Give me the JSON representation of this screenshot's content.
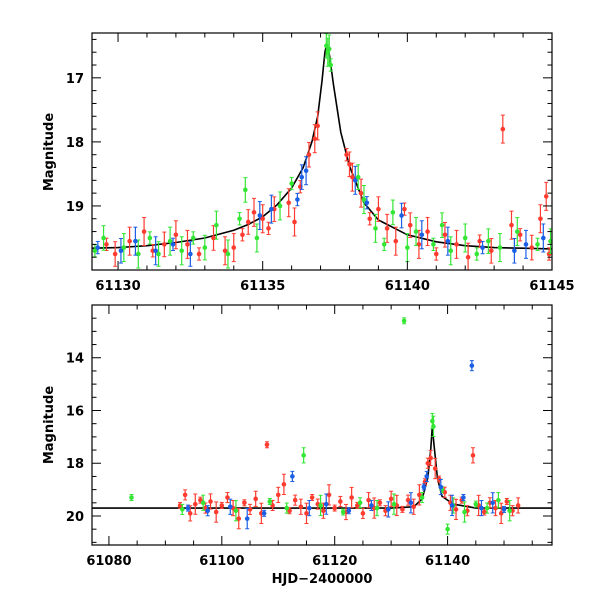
{
  "colors": {
    "red": "#ff3b2f",
    "green": "#33e633",
    "blue": "#1a5fe6",
    "model": "#000000"
  },
  "chart_data": [
    {
      "id": "top",
      "type": "scatter",
      "title": "",
      "xlabel": "",
      "ylabel": "Magnitude",
      "xlim": [
        61129.1,
        61145.0
      ],
      "ylim": [
        20.0,
        16.3
      ],
      "yinverted": true,
      "xticks": [
        61130,
        61135,
        61140,
        61145
      ],
      "xtick_labels": [
        "61130",
        "61135",
        "61140",
        "61145"
      ],
      "yticks": [
        17,
        18,
        19
      ],
      "ytick_labels": [
        "17",
        "18",
        "19"
      ],
      "minor_x_step": 1,
      "minor_y_step": 0.2,
      "model": {
        "type": "line",
        "x": [
          61129.1,
          61130,
          61131,
          61132,
          61133,
          61134,
          61134.5,
          61135,
          61135.5,
          61136,
          61136.4,
          61136.7,
          61136.9,
          61137.05,
          61137.15,
          61137.2,
          61137.3,
          61137.45,
          61137.7,
          61138,
          61138.5,
          61139,
          61140,
          61141,
          61142,
          61143,
          61144,
          61145
        ],
        "y": [
          19.66,
          19.65,
          19.62,
          19.57,
          19.5,
          19.38,
          19.29,
          19.17,
          18.98,
          18.72,
          18.4,
          18.0,
          17.6,
          17.05,
          16.6,
          16.5,
          16.62,
          17.12,
          17.85,
          18.38,
          18.95,
          19.22,
          19.45,
          19.56,
          19.62,
          19.65,
          19.66,
          19.67
        ]
      },
      "series": [
        {
          "name": "red",
          "color": "#ff3b2f",
          "points": [
            [
              61129.6,
              19.6
            ],
            [
              61129.9,
              19.75
            ],
            [
              61130.4,
              19.55
            ],
            [
              61130.9,
              19.4
            ],
            [
              61131.2,
              19.7
            ],
            [
              61131.6,
              19.6
            ],
            [
              61132.0,
              19.45
            ],
            [
              61132.4,
              19.6
            ],
            [
              61132.8,
              19.75
            ],
            [
              61133.3,
              19.5
            ],
            [
              61133.7,
              19.7
            ],
            [
              61134.0,
              19.65
            ],
            [
              61134.3,
              19.45
            ],
            [
              61134.5,
              19.25
            ],
            [
              61134.7,
              19.1
            ],
            [
              61135.0,
              19.2
            ],
            [
              61135.2,
              19.35
            ],
            [
              61135.4,
              19.05
            ],
            [
              61135.9,
              18.95
            ],
            [
              61136.1,
              19.25
            ],
            [
              61136.3,
              18.7
            ],
            [
              61136.6,
              18.2
            ],
            [
              61136.8,
              17.95
            ],
            [
              61136.9,
              17.75
            ],
            [
              61137.9,
              18.2
            ],
            [
              61138.0,
              18.35
            ],
            [
              61138.1,
              18.55
            ],
            [
              61138.4,
              18.8
            ],
            [
              61138.7,
              19.2
            ],
            [
              61139.0,
              19.05
            ],
            [
              61139.3,
              19.35
            ],
            [
              61139.6,
              19.55
            ],
            [
              61139.9,
              19.05
            ],
            [
              61140.1,
              19.3
            ],
            [
              61140.4,
              19.6
            ],
            [
              61140.7,
              19.4
            ],
            [
              61141.0,
              19.75
            ],
            [
              61141.3,
              19.45
            ],
            [
              61141.7,
              19.6
            ],
            [
              61142.1,
              19.8
            ],
            [
              61142.5,
              19.55
            ],
            [
              61142.9,
              19.7
            ],
            [
              61143.3,
              17.8
            ],
            [
              61143.6,
              19.3
            ],
            [
              61143.9,
              19.45
            ],
            [
              61144.3,
              19.65
            ],
            [
              61144.6,
              19.2
            ],
            [
              61144.8,
              18.85
            ],
            [
              61144.9,
              19.75
            ]
          ]
        },
        {
          "name": "green",
          "color": "#33e633",
          "points": [
            [
              61129.2,
              19.7
            ],
            [
              61129.5,
              19.5
            ],
            [
              61130.2,
              19.65
            ],
            [
              61130.7,
              19.75
            ],
            [
              61131.1,
              19.5
            ],
            [
              61131.4,
              19.75
            ],
            [
              61131.8,
              19.55
            ],
            [
              61132.2,
              19.7
            ],
            [
              61132.6,
              19.5
            ],
            [
              61133.0,
              19.65
            ],
            [
              61133.4,
              19.3
            ],
            [
              61133.8,
              19.75
            ],
            [
              61134.2,
              19.2
            ],
            [
              61134.4,
              18.75
            ],
            [
              61134.8,
              19.5
            ],
            [
              61135.6,
              19.0
            ],
            [
              61136.0,
              18.65
            ],
            [
              61137.2,
              16.5
            ],
            [
              61137.25,
              16.6
            ],
            [
              61137.3,
              16.55
            ],
            [
              61137.35,
              16.8
            ],
            [
              61138.3,
              18.55
            ],
            [
              61138.5,
              18.9
            ],
            [
              61138.9,
              19.35
            ],
            [
              61139.2,
              19.6
            ],
            [
              61139.5,
              19.1
            ],
            [
              61140.0,
              19.65
            ],
            [
              61140.3,
              19.4
            ],
            [
              61140.9,
              19.6
            ],
            [
              61141.2,
              19.3
            ],
            [
              61141.5,
              19.7
            ],
            [
              61142.0,
              19.5
            ],
            [
              61142.4,
              19.75
            ],
            [
              61142.8,
              19.55
            ],
            [
              61143.2,
              19.65
            ],
            [
              61143.8,
              19.4
            ],
            [
              61144.5,
              19.6
            ],
            [
              61144.95,
              19.55
            ]
          ]
        },
        {
          "name": "blue",
          "color": "#1a5fe6",
          "points": [
            [
              61129.3,
              19.65
            ],
            [
              61130.1,
              19.7
            ],
            [
              61130.6,
              19.55
            ],
            [
              61131.3,
              19.7
            ],
            [
              61131.9,
              19.6
            ],
            [
              61132.5,
              19.75
            ],
            [
              61134.9,
              19.15
            ],
            [
              61135.3,
              19.05
            ],
            [
              61136.2,
              18.9
            ],
            [
              61136.35,
              18.55
            ],
            [
              61136.5,
              18.45
            ],
            [
              61138.2,
              18.6
            ],
            [
              61138.6,
              18.95
            ],
            [
              61139.8,
              19.15
            ],
            [
              61140.5,
              19.45
            ],
            [
              61141.4,
              19.55
            ],
            [
              61142.6,
              19.65
            ],
            [
              61143.7,
              19.7
            ],
            [
              61144.1,
              19.6
            ],
            [
              61144.7,
              19.5
            ]
          ]
        }
      ]
    },
    {
      "id": "bottom",
      "type": "scatter",
      "title": "",
      "xlabel": "HJD−2400000",
      "ylabel": "Magnitude",
      "xlim": [
        61077.0,
        61158.5
      ],
      "ylim": [
        21.1,
        12.0
      ],
      "yinverted": true,
      "xticks": [
        61080,
        61100,
        61120,
        61140
      ],
      "xtick_labels": [
        "61080",
        "61100",
        "61120",
        "61140"
      ],
      "yticks": [
        14,
        16,
        18,
        20
      ],
      "ytick_labels": [
        "14",
        "16",
        "18",
        "20"
      ],
      "minor_x_step": 5,
      "minor_y_step": 0.5,
      "model": {
        "type": "line",
        "x": [
          61077.0,
          61130.0,
          61134.0,
          61135.5,
          61136.5,
          61137.0,
          61137.3,
          61137.6,
          61138.2,
          61139.0,
          61141.0,
          61145.0,
          61158.5
        ],
        "y": [
          19.7,
          19.7,
          19.65,
          19.35,
          18.55,
          17.5,
          16.6,
          17.3,
          18.55,
          19.25,
          19.55,
          19.7,
          19.7
        ]
      },
      "series": [
        {
          "name": "red",
          "color": "#ff3b2f",
          "points": [
            [
              61092.6,
              19.6
            ],
            [
              61093.5,
              19.2
            ],
            [
              61094.4,
              19.9
            ],
            [
              61095.3,
              19.55
            ],
            [
              61096.2,
              19.4
            ],
            [
              61097.1,
              19.7
            ],
            [
              61098.0,
              19.45
            ],
            [
              61099.0,
              19.85
            ],
            [
              61100.0,
              19.6
            ],
            [
              61101.0,
              19.3
            ],
            [
              61102.0,
              19.7
            ],
            [
              61103.0,
              20.1
            ],
            [
              61104.0,
              19.5
            ],
            [
              61105.0,
              19.75
            ],
            [
              61106.0,
              19.35
            ],
            [
              61107.0,
              19.9
            ],
            [
              61108.0,
              17.3
            ],
            [
              61109.0,
              19.6
            ],
            [
              61110.0,
              19.2
            ],
            [
              61111.0,
              18.8
            ],
            [
              61112.0,
              19.8
            ],
            [
              61113.0,
              19.4
            ],
            [
              61114.0,
              19.65
            ],
            [
              61115.0,
              19.9
            ],
            [
              61116.0,
              19.3
            ],
            [
              61117.0,
              19.55
            ],
            [
              61118.0,
              19.8
            ],
            [
              61119.0,
              19.2
            ],
            [
              61120.0,
              19.7
            ],
            [
              61121.0,
              19.45
            ],
            [
              61122.0,
              19.85
            ],
            [
              61123.0,
              19.3
            ],
            [
              61124.0,
              19.6
            ],
            [
              61125.0,
              19.9
            ],
            [
              61126.0,
              19.4
            ],
            [
              61127.0,
              19.7
            ],
            [
              61128.0,
              19.5
            ],
            [
              61129.0,
              19.8
            ],
            [
              61130.0,
              19.35
            ],
            [
              61131.0,
              19.6
            ],
            [
              61132.0,
              19.75
            ],
            [
              61133.0,
              19.4
            ],
            [
              61134.0,
              19.65
            ],
            [
              61135.0,
              19.2
            ],
            [
              61136.0,
              18.7
            ],
            [
              61136.5,
              18.0
            ],
            [
              61137.0,
              17.8
            ],
            [
              61137.8,
              18.2
            ],
            [
              61138.5,
              18.6
            ],
            [
              61139.5,
              19.1
            ],
            [
              61140.5,
              19.5
            ],
            [
              61141.5,
              19.75
            ],
            [
              61142.5,
              19.4
            ],
            [
              61143.5,
              19.8
            ],
            [
              61144.5,
              17.7
            ],
            [
              61145.5,
              19.6
            ],
            [
              61146.5,
              19.85
            ],
            [
              61147.5,
              19.5
            ],
            [
              61148.5,
              19.7
            ],
            [
              61149.5,
              19.9
            ],
            [
              61150.5,
              19.45
            ],
            [
              61151.5,
              19.8
            ],
            [
              61152.5,
              19.6
            ]
          ]
        },
        {
          "name": "green",
          "color": "#33e633",
          "points": [
            [
              61084.0,
              19.3
            ],
            [
              61093.0,
              19.75
            ],
            [
              61096.7,
              19.5
            ],
            [
              61102.5,
              19.8
            ],
            [
              61108.5,
              19.45
            ],
            [
              61111.5,
              19.7
            ],
            [
              61114.5,
              17.7
            ],
            [
              61117.5,
              19.6
            ],
            [
              61121.5,
              19.85
            ],
            [
              61124.5,
              19.5
            ],
            [
              61127.5,
              19.7
            ],
            [
              61130.5,
              19.55
            ],
            [
              61132.3,
              12.6
            ],
            [
              61135.5,
              19.3
            ],
            [
              61137.3,
              16.4
            ],
            [
              61137.5,
              16.6
            ],
            [
              61139.0,
              19.0
            ],
            [
              61140.0,
              20.5
            ],
            [
              61141.0,
              19.6
            ],
            [
              61143.0,
              19.85
            ],
            [
              61145.0,
              19.55
            ],
            [
              61147.0,
              19.7
            ],
            [
              61149.0,
              19.4
            ],
            [
              61151.0,
              19.8
            ]
          ]
        },
        {
          "name": "blue",
          "color": "#1a5fe6",
          "points": [
            [
              61094.0,
              19.7
            ],
            [
              61097.5,
              19.8
            ],
            [
              61101.5,
              19.65
            ],
            [
              61104.5,
              20.1
            ],
            [
              61107.5,
              19.9
            ],
            [
              61112.5,
              18.5
            ],
            [
              61115.5,
              19.7
            ],
            [
              61118.5,
              19.55
            ],
            [
              61122.5,
              19.8
            ],
            [
              61126.5,
              19.6
            ],
            [
              61129.5,
              19.75
            ],
            [
              61133.5,
              19.5
            ],
            [
              61135.8,
              18.9
            ],
            [
              61136.3,
              18.5
            ],
            [
              61138.8,
              18.9
            ],
            [
              61140.8,
              19.6
            ],
            [
              61142.8,
              19.3
            ],
            [
              61144.3,
              14.3
            ],
            [
              61146.0,
              19.7
            ],
            [
              61148.0,
              19.5
            ],
            [
              61150.0,
              19.75
            ]
          ]
        }
      ]
    }
  ]
}
